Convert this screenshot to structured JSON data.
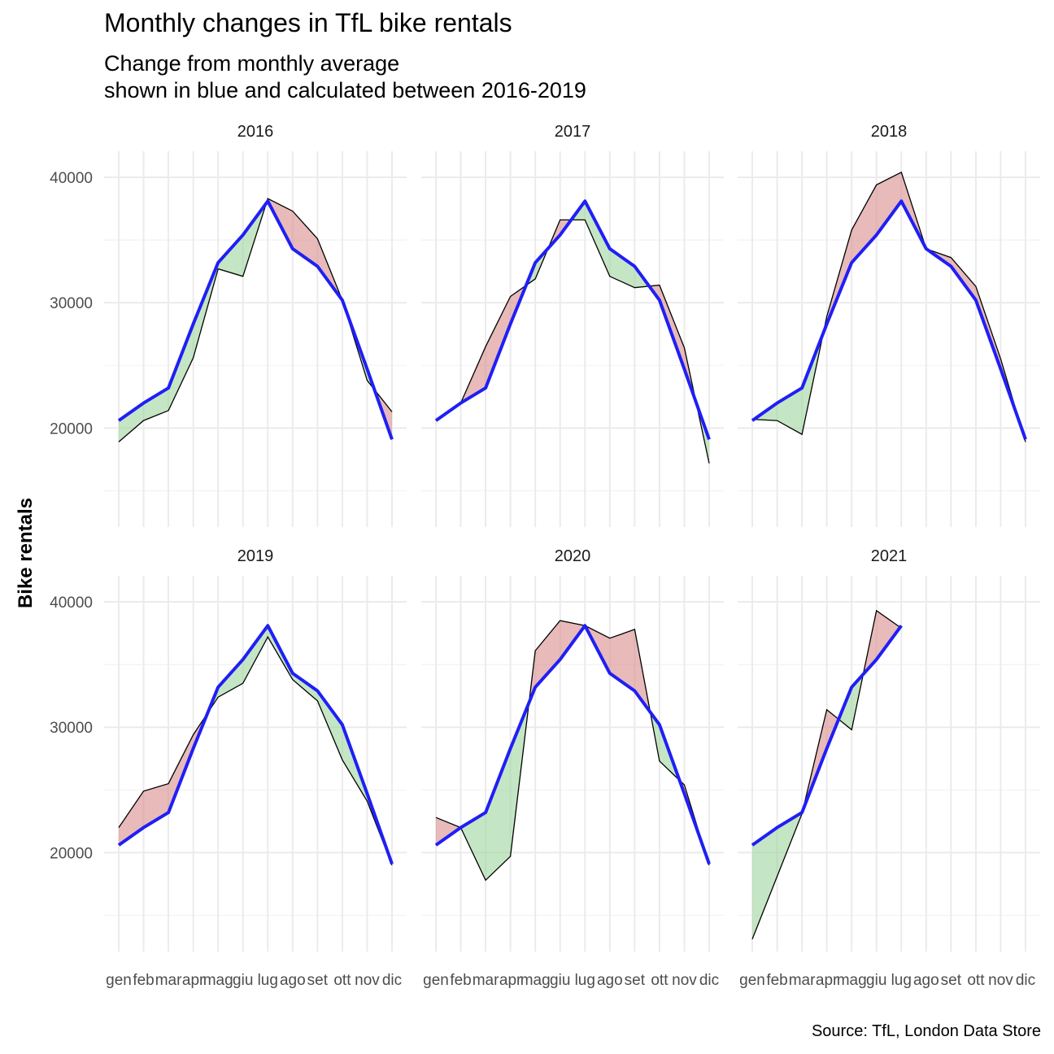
{
  "title": "Monthly changes in TfL bike rentals",
  "subtitle": [
    "Change from monthly average",
    "shown in blue and calculated between 2016-2019"
  ],
  "ylabel": "Bike rentals",
  "caption": "Source: TfL, London Data Store",
  "colors": {
    "expected_line": "#1f1ff5",
    "above_fill": "#d98c8c",
    "below_fill": "#9ed69e",
    "actual_line": "#000000",
    "grid": "#ebebeb"
  },
  "chart_data": {
    "type": "area",
    "facets": [
      "2016",
      "2017",
      "2018",
      "2019",
      "2020",
      "2021"
    ],
    "facet_layout": "3 columns x 2 rows",
    "categories": [
      "gen",
      "feb",
      "mar",
      "apr",
      "mag",
      "giu",
      "lug",
      "ago",
      "set",
      "ott",
      "nov",
      "dic"
    ],
    "y_ticks": [
      20000,
      30000,
      40000
    ],
    "ylim": [
      12000,
      42000
    ],
    "grid": true,
    "expected": [
      20600,
      22000,
      23200,
      28300,
      33200,
      35400,
      38100,
      34300,
      32900,
      30200,
      24700,
      19100
    ],
    "actual": {
      "2016": [
        18900,
        20600,
        21400,
        25600,
        32700,
        32100,
        38300,
        37300,
        35100,
        30200,
        23800,
        21300
      ],
      "2017": [
        20600,
        22000,
        26500,
        30500,
        31900,
        36600,
        36600,
        32100,
        31200,
        31400,
        26400,
        17200
      ],
      "2018": [
        20700,
        20600,
        19500,
        28900,
        35800,
        39400,
        40400,
        34300,
        33600,
        31300,
        25500,
        18900
      ],
      "2019": [
        22000,
        24900,
        25500,
        29400,
        32400,
        33500,
        37200,
        33800,
        32100,
        27400,
        24100,
        19000
      ],
      "2020": [
        22800,
        22000,
        17800,
        19700,
        36100,
        38500,
        38100,
        37100,
        37800,
        27300,
        25400,
        19000
      ],
      "2021": [
        13100,
        18100,
        23100,
        31400,
        29800,
        39300,
        37900
      ]
    }
  }
}
